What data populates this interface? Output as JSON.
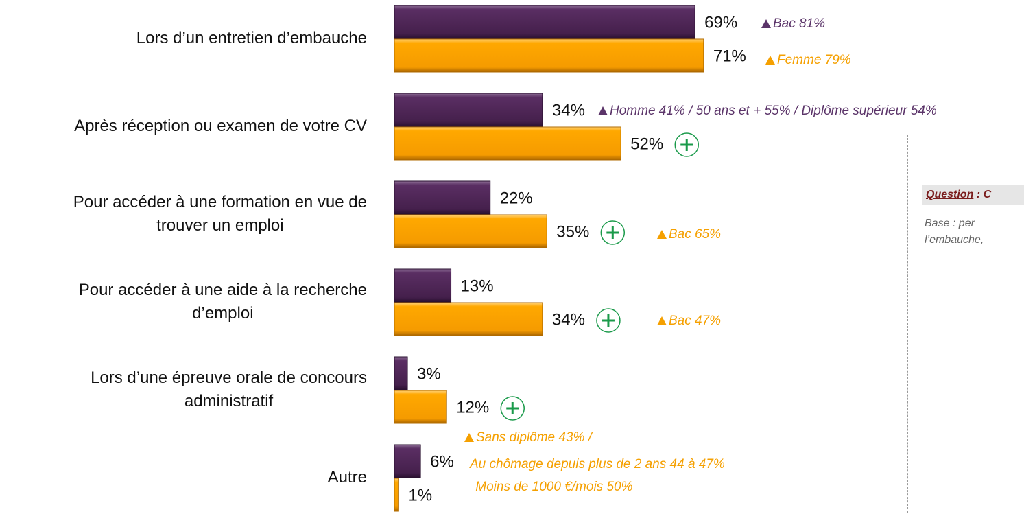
{
  "chart_data": {
    "type": "bar",
    "orientation": "horizontal",
    "categories": [
      "Lors d’un entretien d’embauche",
      "Après réception ou examen de votre CV",
      "Pour accéder à une formation en vue de\ntrouver un emploi",
      "Pour accéder à une aide à la recherche\nd’emploi",
      "Lors d’une épreuve orale de concours\nadministratif",
      "Autre"
    ],
    "series": [
      {
        "color": "#4e2656",
        "values": [
          69,
          34,
          22,
          13,
          3,
          6
        ],
        "value_labels": [
          "69%",
          "34%",
          "22%",
          "13%",
          "3%",
          "6%"
        ]
      },
      {
        "color": "#ffa500",
        "values": [
          71,
          52,
          35,
          34,
          12,
          1
        ],
        "value_labels": [
          "71%",
          "52%",
          "35%",
          "34%",
          "12%",
          "1%"
        ],
        "significant": [
          false,
          true,
          true,
          true,
          true,
          false
        ]
      }
    ],
    "annotations": [
      {
        "lines": [
          "Bac 81%"
        ],
        "color": "#5b3469"
      },
      {
        "lines": [
          "Femme 79%"
        ],
        "color": "#f5a000"
      },
      {
        "lines": [
          "Homme 41% / 50 ans et + 55% / Diplôme supérieur 54%"
        ],
        "color": "#5b3469"
      },
      {
        "lines": [
          "Bac 65%"
        ],
        "color": "#f5a000"
      },
      {
        "lines": [
          "Bac 47%"
        ],
        "color": "#f5a000"
      },
      {
        "lines": [
          "Sans diplôme 43% /",
          "Au chômage depuis plus de 2 ans 44 à 47%",
          " Moins de 1000 €/mois 50%"
        ],
        "color": "#f5a000"
      }
    ]
  },
  "panel": {
    "question_label": "Question",
    "question_text": " : C",
    "base_lines": [
      "Base : per",
      "l’embauche,"
    ]
  }
}
